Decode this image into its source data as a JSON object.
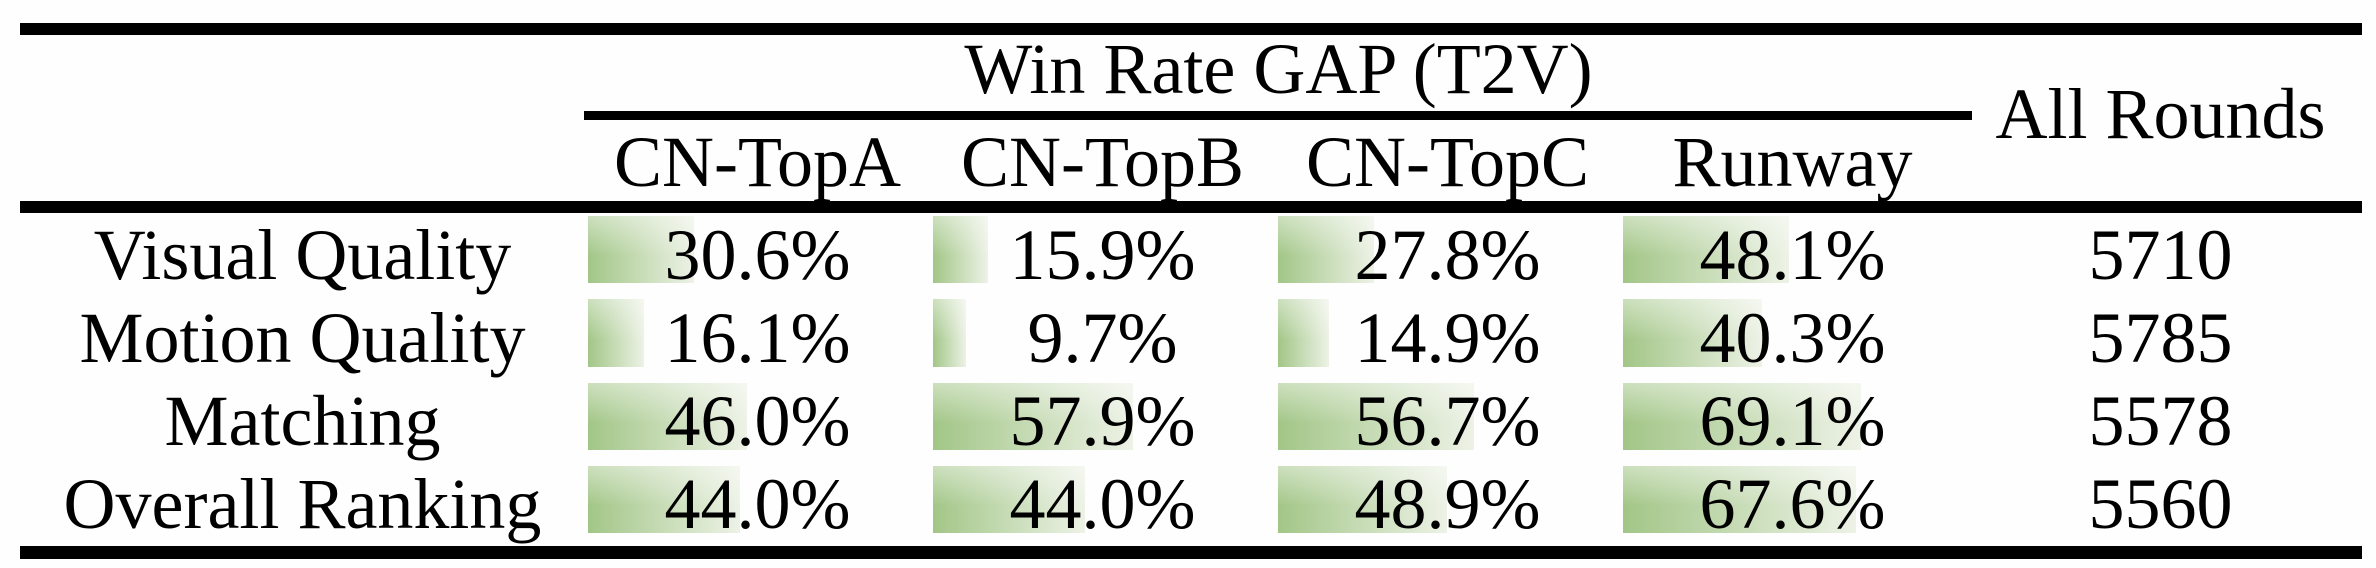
{
  "colors": {
    "bar_green": "#a2c687",
    "bar_fade": "#edf2e6",
    "rule": "#000000"
  },
  "table": {
    "group_header": "Win Rate GAP (T2V)",
    "columns": [
      "CN-TopA",
      "CN-TopB",
      "CN-TopC",
      "Runway"
    ],
    "all_rounds_header": "All Rounds",
    "rows": [
      {
        "label": "Visual Quality",
        "values": [
          "30.6%",
          "15.9%",
          "27.8%",
          "48.1%"
        ],
        "all_rounds": "5710"
      },
      {
        "label": "Motion Quality",
        "values": [
          "16.1%",
          "9.7%",
          "14.9%",
          "40.3%"
        ],
        "all_rounds": "5785"
      },
      {
        "label": "Matching",
        "values": [
          "46.0%",
          "57.9%",
          "56.7%",
          "69.1%"
        ],
        "all_rounds": "5578"
      },
      {
        "label": "Overall Ranking",
        "values": [
          "44.0%",
          "44.0%",
          "48.9%",
          "67.6%"
        ],
        "all_rounds": "5560"
      }
    ]
  }
}
